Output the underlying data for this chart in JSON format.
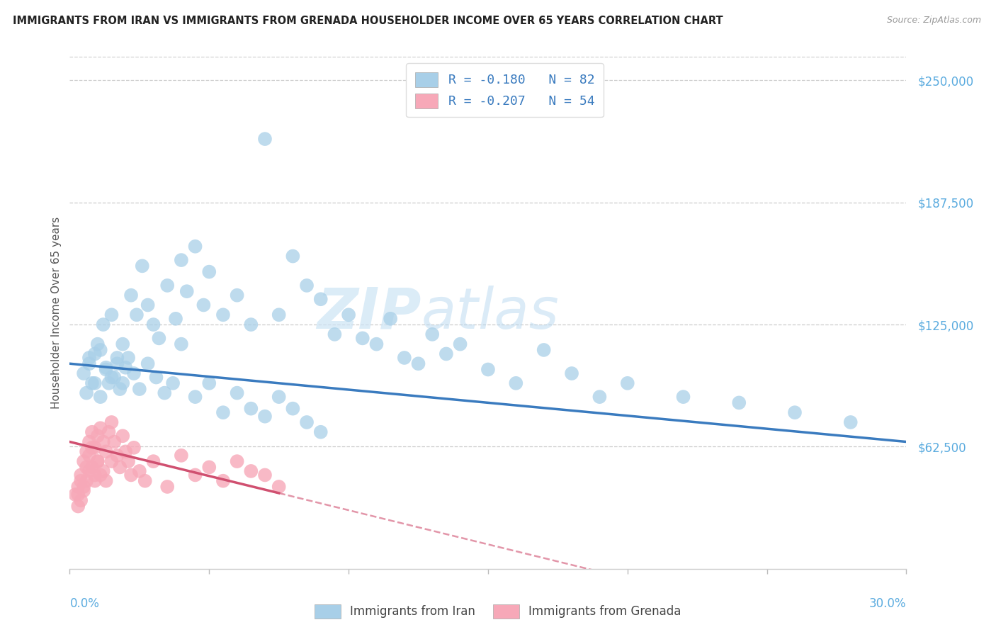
{
  "title": "IMMIGRANTS FROM IRAN VS IMMIGRANTS FROM GRENADA HOUSEHOLDER INCOME OVER 65 YEARS CORRELATION CHART",
  "source": "Source: ZipAtlas.com",
  "ylabel": "Householder Income Over 65 years",
  "ytick_labels": [
    "$62,500",
    "$125,000",
    "$187,500",
    "$250,000"
  ],
  "ytick_values": [
    62500,
    125000,
    187500,
    250000
  ],
  "xmin": 0.0,
  "xmax": 0.3,
  "ymin": 0,
  "ymax": 262000,
  "iran_R": -0.18,
  "iran_N": 82,
  "grenada_R": -0.207,
  "grenada_N": 54,
  "iran_color": "#a8cfe8",
  "iran_line_color": "#3a7bbf",
  "grenada_color": "#f7a8b8",
  "grenada_line_color": "#d05070",
  "watermark_zip": "ZIP",
  "watermark_atlas": "atlas",
  "iran_scatter_x": [
    0.005,
    0.006,
    0.007,
    0.008,
    0.009,
    0.01,
    0.011,
    0.012,
    0.013,
    0.014,
    0.015,
    0.016,
    0.017,
    0.018,
    0.019,
    0.02,
    0.022,
    0.024,
    0.026,
    0.028,
    0.03,
    0.032,
    0.035,
    0.038,
    0.04,
    0.042,
    0.045,
    0.048,
    0.05,
    0.055,
    0.06,
    0.065,
    0.07,
    0.075,
    0.08,
    0.085,
    0.09,
    0.095,
    0.1,
    0.105,
    0.11,
    0.115,
    0.12,
    0.125,
    0.13,
    0.135,
    0.14,
    0.15,
    0.16,
    0.17,
    0.18,
    0.19,
    0.2,
    0.22,
    0.24,
    0.26,
    0.28,
    0.007,
    0.009,
    0.011,
    0.013,
    0.015,
    0.017,
    0.019,
    0.021,
    0.023,
    0.025,
    0.028,
    0.031,
    0.034,
    0.037,
    0.04,
    0.045,
    0.05,
    0.055,
    0.06,
    0.065,
    0.07,
    0.075,
    0.08,
    0.085,
    0.09
  ],
  "iran_scatter_y": [
    100000,
    90000,
    105000,
    95000,
    110000,
    115000,
    88000,
    125000,
    102000,
    95000,
    130000,
    98000,
    108000,
    92000,
    115000,
    103000,
    140000,
    130000,
    155000,
    135000,
    125000,
    118000,
    145000,
    128000,
    158000,
    142000,
    165000,
    135000,
    152000,
    130000,
    140000,
    125000,
    220000,
    130000,
    160000,
    145000,
    138000,
    120000,
    130000,
    118000,
    115000,
    128000,
    108000,
    105000,
    120000,
    110000,
    115000,
    102000,
    95000,
    112000,
    100000,
    88000,
    95000,
    88000,
    85000,
    80000,
    75000,
    108000,
    95000,
    112000,
    103000,
    98000,
    105000,
    95000,
    108000,
    100000,
    92000,
    105000,
    98000,
    90000,
    95000,
    115000,
    88000,
    95000,
    80000,
    90000,
    82000,
    78000,
    88000,
    82000,
    75000,
    70000
  ],
  "grenada_scatter_x": [
    0.002,
    0.003,
    0.003,
    0.004,
    0.004,
    0.005,
    0.005,
    0.006,
    0.006,
    0.007,
    0.007,
    0.008,
    0.008,
    0.009,
    0.009,
    0.01,
    0.01,
    0.011,
    0.011,
    0.012,
    0.012,
    0.013,
    0.013,
    0.014,
    0.015,
    0.015,
    0.016,
    0.017,
    0.018,
    0.019,
    0.02,
    0.021,
    0.022,
    0.023,
    0.025,
    0.027,
    0.03,
    0.035,
    0.04,
    0.045,
    0.05,
    0.055,
    0.06,
    0.065,
    0.07,
    0.075,
    0.003,
    0.004,
    0.005,
    0.006,
    0.007,
    0.008,
    0.009,
    0.01
  ],
  "grenada_scatter_y": [
    38000,
    42000,
    32000,
    48000,
    35000,
    55000,
    42000,
    60000,
    45000,
    65000,
    50000,
    70000,
    52000,
    62000,
    45000,
    68000,
    55000,
    72000,
    48000,
    65000,
    50000,
    60000,
    45000,
    70000,
    75000,
    55000,
    65000,
    58000,
    52000,
    68000,
    60000,
    55000,
    48000,
    62000,
    50000,
    45000,
    55000,
    42000,
    58000,
    48000,
    52000,
    45000,
    55000,
    50000,
    48000,
    42000,
    38000,
    45000,
    40000,
    52000,
    58000,
    62000,
    48000,
    55000
  ]
}
